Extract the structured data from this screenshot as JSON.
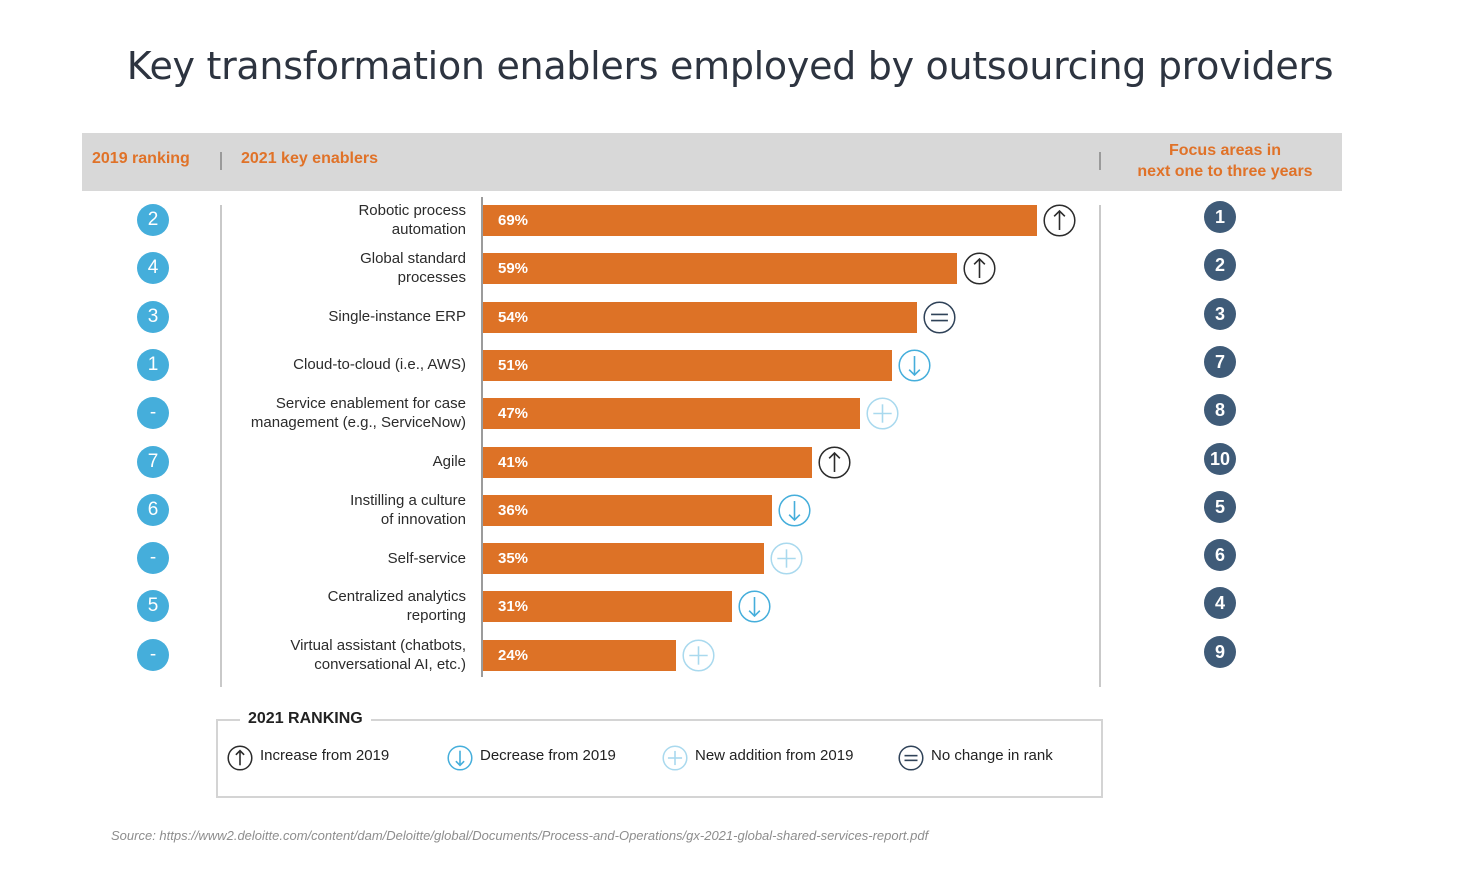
{
  "title": "Key transformation enablers employed by outsourcing providers",
  "header": {
    "col_2019": "2019 ranking",
    "col_2021": "2021 key enablers",
    "col_focus_line1": "Focus areas in",
    "col_focus_line2": "next one to three years"
  },
  "legend": {
    "title": "2021 RANKING",
    "items": [
      {
        "icon": "arrow-up-icon",
        "label": "Increase from 2019"
      },
      {
        "icon": "arrow-down-icon",
        "label": "Decrease from 2019"
      },
      {
        "icon": "plus-icon",
        "label": "New addition from 2019"
      },
      {
        "icon": "equals-icon",
        "label": "No change in rank"
      }
    ]
  },
  "source": "Source: https://www2.deloitte.com/content/dam/Deloitte/global/Documents/Process-and-Operations/gx-2021-global-shared-services-report.pdf",
  "colors": {
    "bar": "#dd7226",
    "rank_circle": "#45aedb",
    "focus_circle": "#3f5b78",
    "header_text": "#e07228",
    "header_bg": "#d8d8d8",
    "icon_dark": "#2b2b2b",
    "icon_light": "#45aedb",
    "icon_faint": "#a9d9ee"
  },
  "chart_data": {
    "type": "bar",
    "orientation": "horizontal",
    "title": "Key transformation enablers employed by outsourcing providers",
    "categories": [
      [
        "Robotic process",
        "automation"
      ],
      [
        "Global standard",
        "processes"
      ],
      [
        "Single-instance ERP"
      ],
      [
        "Cloud-to-cloud (i.e., AWS)"
      ],
      [
        "Service enablement for case",
        "management (e.g., ServiceNow)"
      ],
      [
        "Agile"
      ],
      [
        "Instilling a culture",
        "of innovation"
      ],
      [
        "Self-service"
      ],
      [
        "Centralized analytics",
        "reporting"
      ],
      [
        "Virtual assistant (chatbots,",
        "conversational AI, etc.)"
      ]
    ],
    "values": [
      69,
      59,
      54,
      51,
      47,
      41,
      36,
      35,
      31,
      24
    ],
    "value_labels": [
      "69%",
      "59%",
      "54%",
      "51%",
      "47%",
      "41%",
      "36%",
      "35%",
      "31%",
      "24%"
    ],
    "rank_2019": [
      "2",
      "4",
      "3",
      "1",
      "-",
      "7",
      "6",
      "-",
      "5",
      "-"
    ],
    "change": [
      "up",
      "up",
      "same",
      "down",
      "new",
      "up",
      "down",
      "new",
      "down",
      "new"
    ],
    "focus_rank": [
      "1",
      "2",
      "3",
      "7",
      "8",
      "10",
      "5",
      "6",
      "4",
      "9"
    ],
    "unit": "%"
  }
}
